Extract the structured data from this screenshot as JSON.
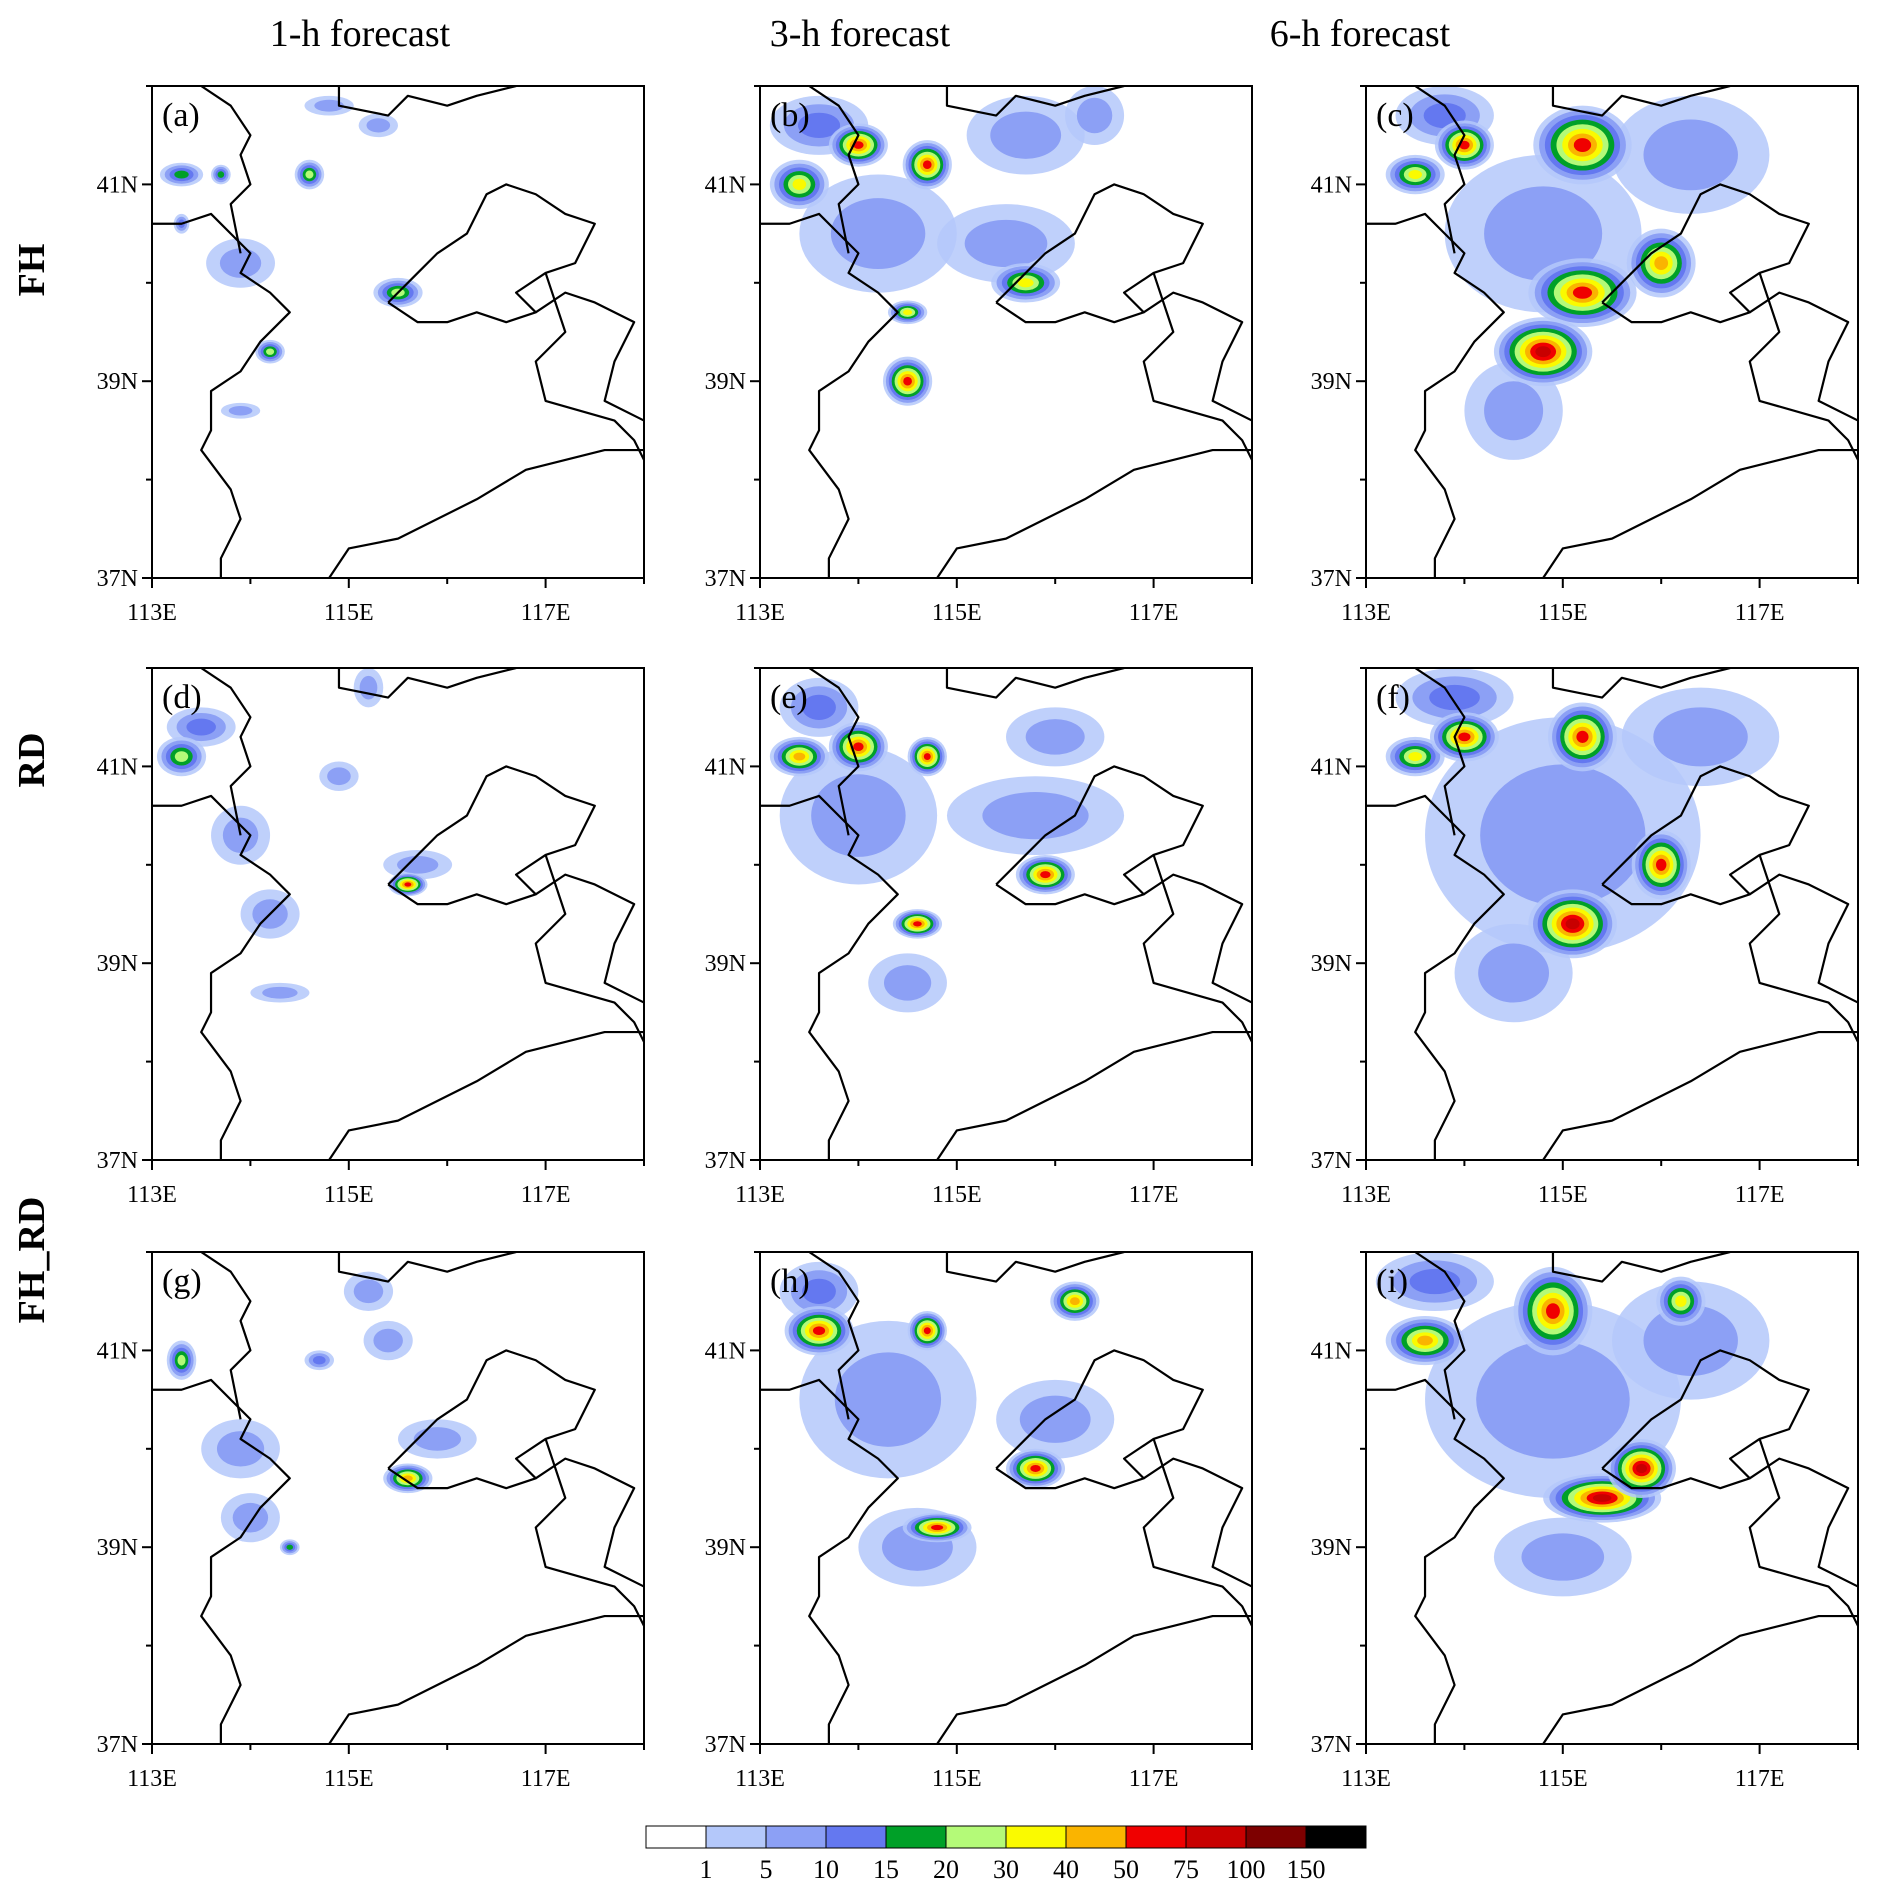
{
  "figure": {
    "column_titles": [
      "1-h forecast",
      "3-h forecast",
      "6-h forecast"
    ],
    "row_titles": [
      "FH",
      "RD",
      "FH_RD"
    ]
  },
  "axes": {
    "x_ticks": [
      "113E",
      "115E",
      "117E"
    ],
    "y_ticks": [
      "41N",
      "39N",
      "37N"
    ],
    "lon_range": [
      113,
      118
    ],
    "lat_range": [
      37,
      42
    ]
  },
  "panels": [
    {
      "label": "(a)",
      "experiment": "FH",
      "lead": "1-h forecast",
      "blobs": [
        [
          113.3,
          41.1,
          0.22,
          0.12,
          15
        ],
        [
          113.7,
          41.1,
          0.1,
          0.1,
          15
        ],
        [
          113.3,
          40.6,
          0.08,
          0.1,
          10
        ],
        [
          113.9,
          40.2,
          0.35,
          0.25,
          5
        ],
        [
          114.6,
          41.1,
          0.15,
          0.15,
          20
        ],
        [
          115.5,
          39.9,
          0.25,
          0.15,
          20
        ],
        [
          114.2,
          39.3,
          0.15,
          0.12,
          20
        ],
        [
          113.9,
          38.7,
          0.2,
          0.08,
          5
        ],
        [
          115.3,
          41.6,
          0.2,
          0.12,
          5
        ],
        [
          114.8,
          41.8,
          0.25,
          0.1,
          5
        ]
      ]
    },
    {
      "label": "(b)",
      "experiment": "FH",
      "lead": "3-h forecast",
      "blobs": [
        [
          114.0,
          41.4,
          0.3,
          0.22,
          60
        ],
        [
          114.7,
          41.2,
          0.25,
          0.25,
          60
        ],
        [
          113.4,
          41.0,
          0.3,
          0.25,
          30
        ],
        [
          115.7,
          40.0,
          0.35,
          0.2,
          30
        ],
        [
          114.5,
          39.7,
          0.2,
          0.12,
          30
        ],
        [
          114.5,
          39.0,
          0.25,
          0.25,
          50
        ],
        [
          114.2,
          40.5,
          0.8,
          0.6,
          5
        ],
        [
          115.5,
          40.4,
          0.7,
          0.4,
          5
        ],
        [
          113.6,
          41.6,
          0.5,
          0.3,
          10
        ],
        [
          115.7,
          41.5,
          0.6,
          0.4,
          5
        ],
        [
          116.4,
          41.7,
          0.3,
          0.3,
          5
        ]
      ]
    },
    {
      "label": "(c)",
      "experiment": "FH",
      "lead": "6-h forecast",
      "blobs": [
        [
          115.2,
          41.4,
          0.5,
          0.4,
          60
        ],
        [
          114.0,
          41.4,
          0.3,
          0.25,
          60
        ],
        [
          113.5,
          41.1,
          0.3,
          0.2,
          30
        ],
        [
          115.2,
          39.9,
          0.55,
          0.35,
          60
        ],
        [
          114.8,
          39.3,
          0.5,
          0.35,
          80
        ],
        [
          116.0,
          40.2,
          0.35,
          0.35,
          40
        ],
        [
          114.8,
          40.5,
          1.0,
          0.8,
          5
        ],
        [
          116.3,
          41.3,
          0.8,
          0.6,
          5
        ],
        [
          114.5,
          38.7,
          0.5,
          0.5,
          5
        ],
        [
          113.8,
          41.7,
          0.5,
          0.3,
          10
        ]
      ]
    },
    {
      "label": "(d)",
      "experiment": "RD",
      "lead": "1-h forecast",
      "blobs": [
        [
          113.3,
          41.1,
          0.25,
          0.2,
          20
        ],
        [
          113.5,
          41.4,
          0.35,
          0.2,
          10
        ],
        [
          113.9,
          40.3,
          0.3,
          0.3,
          5
        ],
        [
          114.2,
          39.5,
          0.3,
          0.25,
          5
        ],
        [
          115.6,
          39.8,
          0.2,
          0.12,
          60
        ],
        [
          115.7,
          40.0,
          0.35,
          0.15,
          5
        ],
        [
          114.3,
          38.7,
          0.3,
          0.1,
          5
        ],
        [
          114.9,
          40.9,
          0.2,
          0.15,
          5
        ],
        [
          115.2,
          41.8,
          0.15,
          0.2,
          5
        ]
      ]
    },
    {
      "label": "(e)",
      "experiment": "RD",
      "lead": "3-h forecast",
      "blobs": [
        [
          114.0,
          41.2,
          0.3,
          0.25,
          60
        ],
        [
          113.4,
          41.1,
          0.3,
          0.2,
          40
        ],
        [
          114.7,
          41.1,
          0.2,
          0.2,
          60
        ],
        [
          115.9,
          39.9,
          0.3,
          0.2,
          60
        ],
        [
          114.6,
          39.4,
          0.25,
          0.15,
          60
        ],
        [
          114.0,
          40.5,
          0.8,
          0.7,
          5
        ],
        [
          115.8,
          40.5,
          0.9,
          0.4,
          5
        ],
        [
          113.6,
          41.6,
          0.4,
          0.3,
          10
        ],
        [
          116.0,
          41.3,
          0.5,
          0.3,
          5
        ],
        [
          114.5,
          38.8,
          0.4,
          0.3,
          5
        ]
      ]
    },
    {
      "label": "(f)",
      "experiment": "RD",
      "lead": "6-h forecast",
      "blobs": [
        [
          114.0,
          41.3,
          0.35,
          0.25,
          60
        ],
        [
          113.5,
          41.1,
          0.3,
          0.2,
          30
        ],
        [
          115.2,
          41.3,
          0.35,
          0.35,
          60
        ],
        [
          116.0,
          40.0,
          0.3,
          0.35,
          60
        ],
        [
          115.1,
          39.4,
          0.45,
          0.35,
          80
        ],
        [
          115.0,
          40.3,
          1.4,
          1.2,
          5
        ],
        [
          116.4,
          41.3,
          0.8,
          0.5,
          5
        ],
        [
          113.9,
          41.7,
          0.6,
          0.3,
          10
        ],
        [
          114.5,
          38.9,
          0.6,
          0.5,
          5
        ]
      ]
    },
    {
      "label": "(g)",
      "experiment": "FH_RD",
      "lead": "1-h forecast",
      "blobs": [
        [
          113.3,
          40.9,
          0.15,
          0.2,
          20
        ],
        [
          115.6,
          39.7,
          0.25,
          0.15,
          40
        ],
        [
          114.4,
          39.0,
          0.1,
          0.08,
          15
        ],
        [
          115.9,
          40.1,
          0.4,
          0.2,
          5
        ],
        [
          113.9,
          40.0,
          0.4,
          0.3,
          5
        ],
        [
          114.0,
          39.3,
          0.3,
          0.25,
          5
        ],
        [
          115.4,
          41.1,
          0.25,
          0.2,
          5
        ],
        [
          114.7,
          40.9,
          0.15,
          0.1,
          10
        ],
        [
          115.2,
          41.6,
          0.25,
          0.2,
          5
        ]
      ]
    },
    {
      "label": "(h)",
      "experiment": "FH_RD",
      "lead": "3-h forecast",
      "blobs": [
        [
          113.6,
          41.2,
          0.35,
          0.25,
          60
        ],
        [
          114.7,
          41.2,
          0.2,
          0.2,
          60
        ],
        [
          115.8,
          39.8,
          0.3,
          0.2,
          60
        ],
        [
          114.8,
          39.2,
          0.35,
          0.15,
          50
        ],
        [
          116.2,
          41.5,
          0.25,
          0.2,
          40
        ],
        [
          114.3,
          40.5,
          0.9,
          0.8,
          5
        ],
        [
          116.0,
          40.3,
          0.6,
          0.4,
          5
        ],
        [
          113.6,
          41.6,
          0.4,
          0.3,
          10
        ],
        [
          114.6,
          39.0,
          0.6,
          0.4,
          5
        ]
      ]
    },
    {
      "label": "(i)",
      "experiment": "FH_RD",
      "lead": "6-h forecast",
      "blobs": [
        [
          113.6,
          41.1,
          0.4,
          0.25,
          40
        ],
        [
          114.9,
          41.4,
          0.4,
          0.45,
          60
        ],
        [
          115.4,
          39.5,
          0.6,
          0.25,
          80
        ],
        [
          115.8,
          39.8,
          0.35,
          0.3,
          80
        ],
        [
          116.2,
          41.5,
          0.25,
          0.25,
          30
        ],
        [
          114.9,
          40.5,
          1.3,
          1.0,
          5
        ],
        [
          116.3,
          41.1,
          0.8,
          0.6,
          5
        ],
        [
          113.7,
          41.7,
          0.6,
          0.3,
          10
        ],
        [
          115.0,
          38.9,
          0.7,
          0.4,
          5
        ]
      ]
    }
  ],
  "colorbar": {
    "levels": [
      "1",
      "5",
      "10",
      "15",
      "20",
      "30",
      "40",
      "50",
      "75",
      "100",
      "150"
    ],
    "colors": [
      "#ffffff",
      "#b4c8fa",
      "#8ca0f5",
      "#6478f0",
      "#00a028",
      "#b4fa78",
      "#fafa00",
      "#fab400",
      "#f00000",
      "#c80000",
      "#7d0000",
      "#000000"
    ]
  }
}
